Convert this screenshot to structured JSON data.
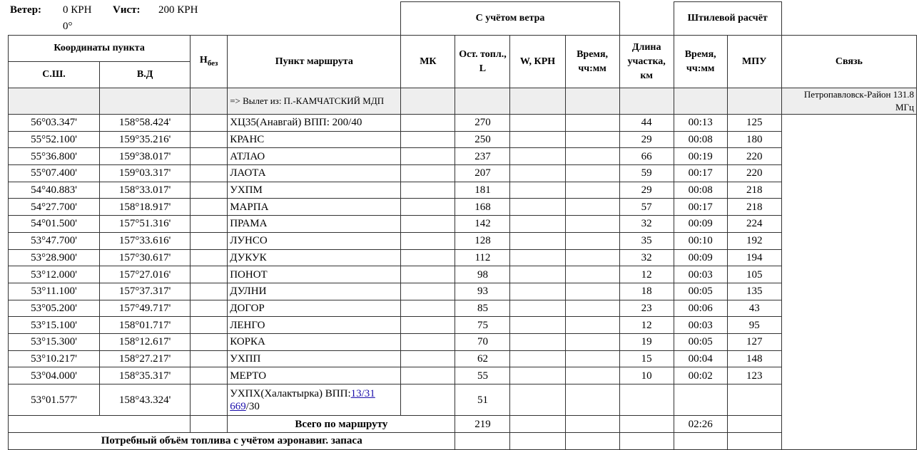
{
  "header": {
    "wind_label": "Ветер:",
    "wind_speed": "0 КРН",
    "wind_dir": "0°",
    "vist_label": "Vист:",
    "vist_value": "200 КРН"
  },
  "table": {
    "groups": {
      "coords": "Координаты пункта",
      "wind": "С учётом ветра",
      "calm": "Штилевой расчёт"
    },
    "columns": {
      "lat": "С.Ш.",
      "lon": "В.Д",
      "h_main": "H",
      "h_sub": "без",
      "point": "Пункт маршрута",
      "mk": "МК",
      "fuel": "Ост. топл., L",
      "w": "W, КРН",
      "time_wind": "Время, чч:мм",
      "dist": "Длина участка, км",
      "time_calm": "Время, чч:мм",
      "mpu": "МПУ",
      "radio": "Связь"
    },
    "departure": {
      "text": "=> Вылет из: П.-КАМЧАТСКИЙ МДП",
      "radio": "Петропавловск-Район 131.8 МГц"
    },
    "rows": [
      {
        "lat": "56°03.347'",
        "lon": "158°58.424'",
        "point": "ХЦ35(Анавгай) ВПП: 200/40",
        "fuel": 270,
        "dist": 44,
        "time": "00:13",
        "mpu": 125
      },
      {
        "lat": "55°52.100'",
        "lon": "159°35.216'",
        "point": "КРАНС",
        "fuel": 250,
        "dist": 29,
        "time": "00:08",
        "mpu": 180
      },
      {
        "lat": "55°36.800'",
        "lon": "159°38.017'",
        "point": "АТЛАО",
        "fuel": 237,
        "dist": 66,
        "time": "00:19",
        "mpu": 220
      },
      {
        "lat": "55°07.400'",
        "lon": "159°03.317'",
        "point": "ЛАОТА",
        "fuel": 207,
        "dist": 59,
        "time": "00:17",
        "mpu": 220
      },
      {
        "lat": "54°40.883'",
        "lon": "158°33.017'",
        "point": "УХПМ",
        "fuel": 181,
        "dist": 29,
        "time": "00:08",
        "mpu": 218
      },
      {
        "lat": "54°27.700'",
        "lon": "158°18.917'",
        "point": "МАРПА",
        "fuel": 168,
        "dist": 57,
        "time": "00:17",
        "mpu": 218
      },
      {
        "lat": "54°01.500'",
        "lon": "157°51.316'",
        "point": "ПРАМА",
        "fuel": 142,
        "dist": 32,
        "time": "00:09",
        "mpu": 224
      },
      {
        "lat": "53°47.700'",
        "lon": "157°33.616'",
        "point": "ЛУНСО",
        "fuel": 128,
        "dist": 35,
        "time": "00:10",
        "mpu": 192
      },
      {
        "lat": "53°28.900'",
        "lon": "157°30.617'",
        "point": "ДУКУК",
        "fuel": 112,
        "dist": 32,
        "time": "00:09",
        "mpu": 194
      },
      {
        "lat": "53°12.000'",
        "lon": "157°27.016'",
        "point": "ПОНОТ",
        "fuel": 98,
        "dist": 12,
        "time": "00:03",
        "mpu": 105
      },
      {
        "lat": "53°11.100'",
        "lon": "157°37.317'",
        "point": "ДУЛНИ",
        "fuel": 93,
        "dist": 18,
        "time": "00:05",
        "mpu": 135
      },
      {
        "lat": "53°05.200'",
        "lon": "157°49.717'",
        "point": "ДОГОР",
        "fuel": 85,
        "dist": 23,
        "time": "00:06",
        "mpu": 43
      },
      {
        "lat": "53°15.100'",
        "lon": "158°01.717'",
        "point": "ЛЕНГО",
        "fuel": 75,
        "dist": 12,
        "time": "00:03",
        "mpu": 95
      },
      {
        "lat": "53°15.300'",
        "lon": "158°12.617'",
        "point": "КОРКА",
        "fuel": 70,
        "dist": 19,
        "time": "00:05",
        "mpu": 127
      },
      {
        "lat": "53°10.217'",
        "lon": "158°27.217'",
        "point": "УХПП",
        "fuel": 62,
        "dist": 15,
        "time": "00:04",
        "mpu": 148
      },
      {
        "lat": "53°04.000'",
        "lon": "158°35.317'",
        "point": "МЕРТО",
        "fuel": 55,
        "dist": 10,
        "time": "00:02",
        "mpu": 123
      },
      {
        "lat": "53°01.577'",
        "lon": "158°43.324'",
        "point": "УХПХ(Халактырка) ВПП:",
        "point_link": "13/31 669",
        "point_suffix": "/30",
        "fuel": 51
      }
    ],
    "total": {
      "label": "Всего по маршруту",
      "fuel": 219,
      "time": "02:26"
    },
    "footer": "Потребный объём топлива с учётом аэронавиг. запаса"
  }
}
